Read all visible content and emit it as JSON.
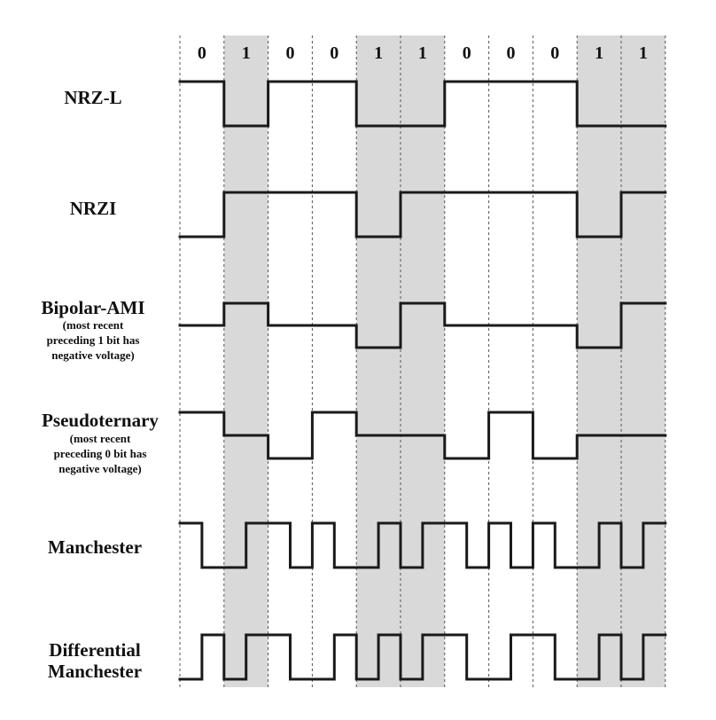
{
  "bits": [
    "0",
    "1",
    "0",
    "0",
    "1",
    "1",
    "0",
    "0",
    "0",
    "1",
    "1"
  ],
  "encodings": [
    {
      "name": "NRZ-L",
      "note": [],
      "levels": [
        1,
        -1,
        1,
        1,
        -1,
        -1,
        1,
        1,
        1,
        -1,
        -1
      ]
    },
    {
      "name": "NRZI",
      "note": [],
      "levels": [
        -1,
        1,
        1,
        1,
        -1,
        1,
        1,
        1,
        1,
        -1,
        1
      ]
    },
    {
      "name": "Bipolar-AMI",
      "note": [
        "(most recent",
        "preceding 1 bit has",
        "negative voltage)"
      ],
      "levels": [
        0,
        1,
        0,
        0,
        -1,
        1,
        0,
        0,
        0,
        -1,
        1
      ]
    },
    {
      "name": "Pseudoternary",
      "note": [
        "(most recent",
        "preceding 0 bit has",
        "negative voltage)"
      ],
      "levels": [
        1,
        0,
        -1,
        1,
        0,
        0,
        -1,
        1,
        -1,
        0,
        0
      ]
    },
    {
      "name": "Manchester",
      "note": [],
      "halves": [
        [
          1,
          -1
        ],
        [
          -1,
          1
        ],
        [
          1,
          -1
        ],
        [
          1,
          -1
        ],
        [
          -1,
          1
        ],
        [
          -1,
          1
        ],
        [
          1,
          -1
        ],
        [
          1,
          -1
        ],
        [
          1,
          -1
        ],
        [
          -1,
          1
        ],
        [
          -1,
          1
        ]
      ]
    },
    {
      "name": "Differential Manchester",
      "lines": [
        "Differential",
        "Manchester"
      ],
      "note": [],
      "halves": [
        [
          -1,
          1
        ],
        [
          -1,
          1
        ],
        [
          1,
          -1
        ],
        [
          -1,
          1
        ],
        [
          -1,
          1
        ],
        [
          -1,
          1
        ],
        [
          1,
          -1
        ],
        [
          -1,
          1
        ],
        [
          1,
          -1
        ],
        [
          -1,
          1
        ],
        [
          -1,
          1
        ]
      ]
    }
  ],
  "colors": {
    "shade": "#d9d9d9",
    "line": "#1a1a1a",
    "grid": "#555555"
  }
}
